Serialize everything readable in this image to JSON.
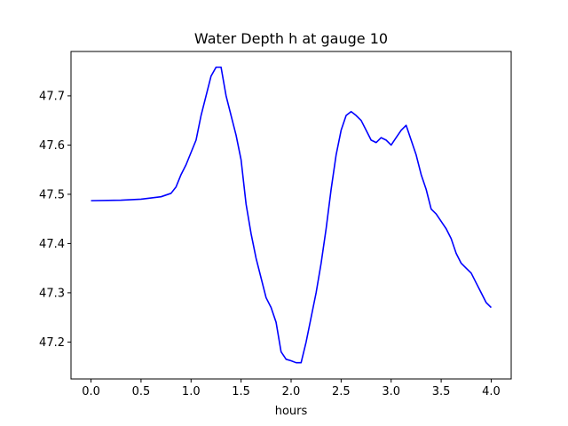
{
  "chart_data": {
    "type": "line",
    "title": "Water Depth h at gauge 10",
    "xlabel": "hours",
    "ylabel": "",
    "xlim": [
      -0.2,
      4.2
    ],
    "ylim": [
      47.125,
      47.79
    ],
    "xticks": [
      0.0,
      0.5,
      1.0,
      1.5,
      2.0,
      2.5,
      3.0,
      3.5,
      4.0
    ],
    "xtick_labels": [
      "0.0",
      "0.5",
      "1.0",
      "1.5",
      "2.0",
      "2.5",
      "3.0",
      "3.5",
      "4.0"
    ],
    "yticks": [
      47.2,
      47.3,
      47.4,
      47.5,
      47.6,
      47.7
    ],
    "ytick_labels": [
      "47.2",
      "47.3",
      "47.4",
      "47.5",
      "47.6",
      "47.7"
    ],
    "grid": false,
    "series": [
      {
        "color": "#0000ff",
        "x": [
          0.0,
          0.3,
          0.5,
          0.7,
          0.8,
          0.85,
          0.9,
          0.95,
          1.0,
          1.05,
          1.1,
          1.15,
          1.2,
          1.25,
          1.3,
          1.35,
          1.4,
          1.45,
          1.5,
          1.55,
          1.6,
          1.65,
          1.7,
          1.75,
          1.8,
          1.85,
          1.9,
          1.95,
          2.0,
          2.05,
          2.1,
          2.15,
          2.2,
          2.25,
          2.3,
          2.35,
          2.4,
          2.45,
          2.5,
          2.55,
          2.6,
          2.65,
          2.7,
          2.75,
          2.8,
          2.85,
          2.9,
          2.95,
          3.0,
          3.05,
          3.1,
          3.15,
          3.2,
          3.25,
          3.3,
          3.35,
          3.4,
          3.45,
          3.5,
          3.55,
          3.6,
          3.65,
          3.7,
          3.75,
          3.8,
          3.85,
          3.9,
          3.95,
          4.0
        ],
        "y": [
          47.487,
          47.488,
          47.49,
          47.495,
          47.502,
          47.515,
          47.54,
          47.56,
          47.585,
          47.61,
          47.66,
          47.7,
          47.74,
          47.758,
          47.758,
          47.7,
          47.66,
          47.62,
          47.57,
          47.48,
          47.42,
          47.37,
          47.33,
          47.29,
          47.27,
          47.24,
          47.18,
          47.165,
          47.162,
          47.158,
          47.158,
          47.2,
          47.25,
          47.3,
          47.36,
          47.43,
          47.51,
          47.58,
          47.63,
          47.66,
          47.668,
          47.66,
          47.65,
          47.63,
          47.61,
          47.605,
          47.615,
          47.61,
          47.6,
          47.615,
          47.63,
          47.64,
          47.61,
          47.58,
          47.54,
          47.51,
          47.47,
          47.46,
          47.445,
          47.43,
          47.41,
          47.38,
          47.36,
          47.35,
          47.34,
          47.32,
          47.3,
          47.28,
          47.27
        ]
      }
    ]
  }
}
